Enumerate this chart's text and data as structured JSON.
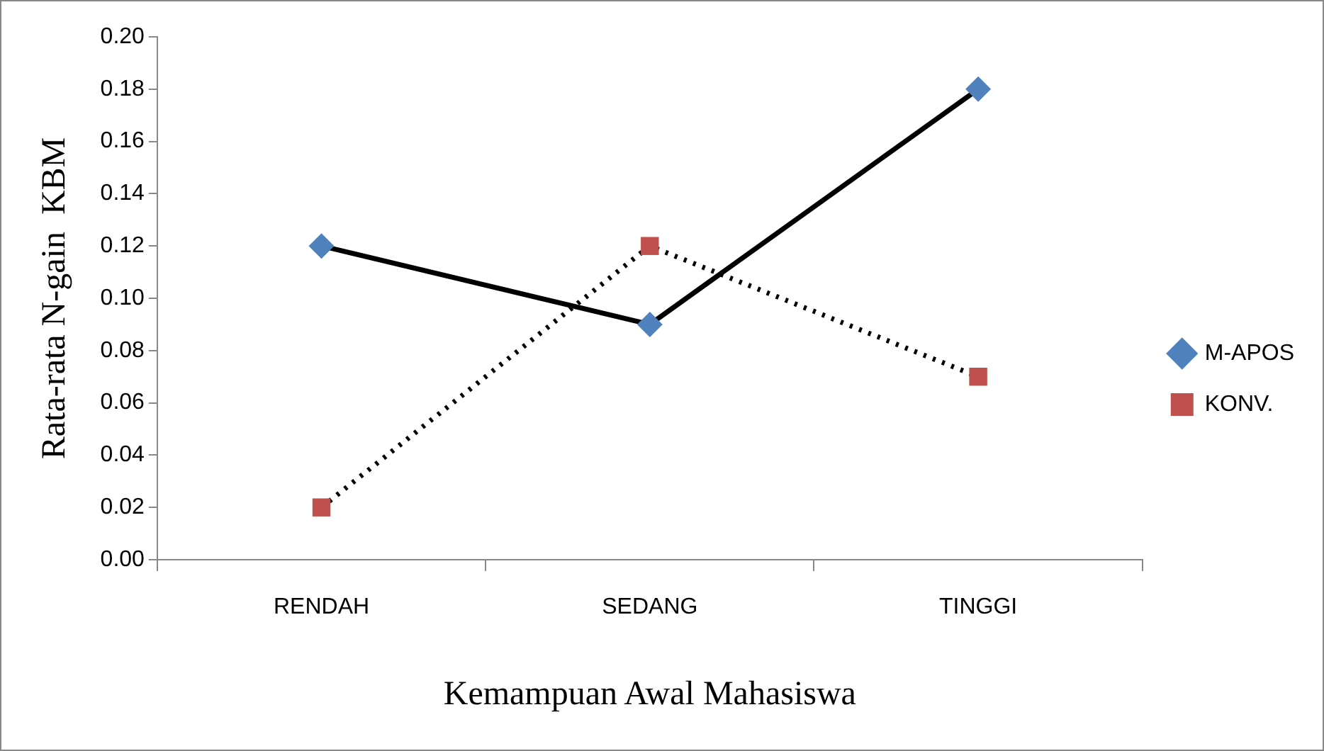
{
  "chart_data": {
    "type": "line",
    "xlabel": "Kemampuan Awal Mahasiswa",
    "ylabel": "Rata-rata N-gain  KBM",
    "categories": [
      "RENDAH",
      "SEDANG",
      "TINGGI"
    ],
    "series": [
      {
        "name": "M-APOS",
        "color": "#4f81bd",
        "marker": "diamond",
        "line_style": "solid",
        "values": [
          0.12,
          0.09,
          0.18
        ]
      },
      {
        "name": "KONV.",
        "color": "#c0504d",
        "marker": "square",
        "line_style": "dotted",
        "values": [
          0.02,
          0.12,
          0.07
        ]
      }
    ],
    "ylim": [
      0,
      0.2
    ],
    "yticks": [
      {
        "value": 0,
        "label": "0.00"
      },
      {
        "value": 0.02,
        "label": "0.02"
      },
      {
        "value": 0.04,
        "label": "0.04"
      },
      {
        "value": 0.06,
        "label": "0.06"
      },
      {
        "value": 0.08,
        "label": "0.08"
      },
      {
        "value": 0.1,
        "label": "0.10"
      },
      {
        "value": 0.12,
        "label": "0.12"
      },
      {
        "value": 0.14,
        "label": "0.14"
      },
      {
        "value": 0.16,
        "label": "0.16"
      },
      {
        "value": 0.18,
        "label": "0.18"
      },
      {
        "value": 0.2,
        "label": "0.20"
      }
    ],
    "grid": false,
    "legend": "right"
  }
}
